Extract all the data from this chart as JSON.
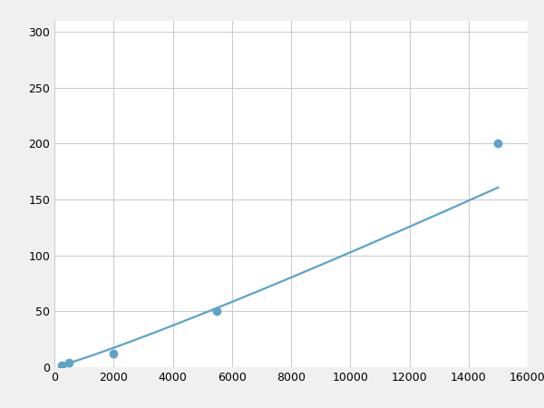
{
  "x_points": [
    250,
    500,
    2000,
    5500,
    15000
  ],
  "y_points": [
    2,
    4,
    12,
    50,
    200
  ],
  "line_color": "#5ba3c9",
  "marker_color": "#5ba3c9",
  "marker_size": 6,
  "line_width": 1.6,
  "xlim": [
    0,
    16000
  ],
  "ylim": [
    0,
    310
  ],
  "xticks": [
    0,
    2000,
    4000,
    6000,
    8000,
    10000,
    12000,
    14000,
    16000
  ],
  "yticks": [
    0,
    50,
    100,
    150,
    200,
    250,
    300
  ],
  "grid_color": "#cccccc",
  "background_color": "#ffffff",
  "figure_bg": "#f0f0f0"
}
